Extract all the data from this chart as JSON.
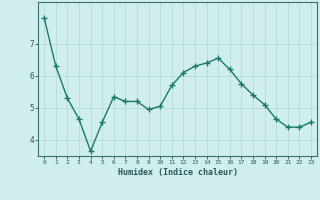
{
  "x": [
    0,
    1,
    2,
    3,
    4,
    5,
    6,
    7,
    8,
    9,
    10,
    11,
    12,
    13,
    14,
    15,
    16,
    17,
    18,
    19,
    20,
    21,
    22,
    23
  ],
  "y": [
    7.8,
    6.3,
    5.3,
    4.65,
    3.65,
    4.55,
    5.35,
    5.2,
    5.2,
    4.95,
    5.05,
    5.7,
    6.1,
    6.3,
    6.4,
    6.55,
    6.2,
    5.75,
    5.4,
    5.1,
    4.65,
    4.4,
    4.4,
    4.55
  ],
  "xlabel": "Humidex (Indice chaleur)",
  "ylim": [
    3.5,
    8.3
  ],
  "xlim": [
    -0.5,
    23.5
  ],
  "yticks": [
    4,
    5,
    6,
    7
  ],
  "xticks": [
    0,
    1,
    2,
    3,
    4,
    5,
    6,
    7,
    8,
    9,
    10,
    11,
    12,
    13,
    14,
    15,
    16,
    17,
    18,
    19,
    20,
    21,
    22,
    23
  ],
  "line_color": "#1a7a6a",
  "marker": "+",
  "bg_color": "#d0eeeb",
  "grid_color": "#b8dbd8",
  "axis_color": "#3a7070",
  "tick_color": "#2a5858",
  "label_color": "#2a5858",
  "linewidth": 1.0,
  "markersize": 4.5
}
